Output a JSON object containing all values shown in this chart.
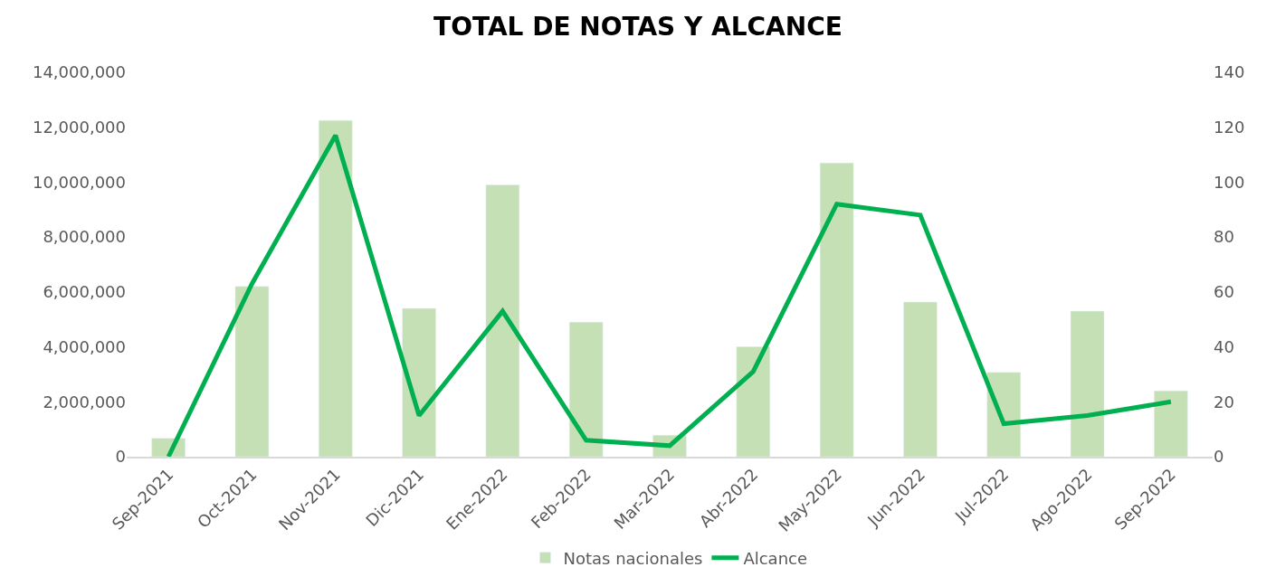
{
  "chart_data": {
    "type": "bar",
    "title": "TOTAL DE NOTAS Y ALCANCE",
    "categories": [
      "Sep-2021",
      "Oct-2021",
      "Nov-2021",
      "Dic-2021",
      "Ene-2022",
      "Feb-2022",
      "Mar-2022",
      "Abr-2022",
      "May-2022",
      "Jun-2022",
      "Jul-2022",
      "Ago-2022",
      "Sep-2022"
    ],
    "series": [
      {
        "name": "Notas nacionales",
        "color": "#c5e0b4",
        "values": [
          670000,
          6200000,
          12250000,
          5400000,
          9900000,
          4900000,
          780000,
          4000000,
          10700000,
          5630000,
          3070000,
          5300000,
          2400000
        ]
      },
      {
        "name": "Alcance",
        "type": "line",
        "axis": "y2",
        "color": "#00b050",
        "values": [
          0,
          63,
          117,
          15,
          53,
          6,
          4,
          31,
          92,
          88,
          12,
          15,
          20
        ]
      }
    ],
    "ylim": [
      0,
      14000000
    ],
    "yticks": [
      {
        "value": 0,
        "label": "0"
      },
      {
        "value": 2000000,
        "label": "2,000,000"
      },
      {
        "value": 4000000,
        "label": "4,000,000"
      },
      {
        "value": 6000000,
        "label": "6,000,000"
      },
      {
        "value": 8000000,
        "label": "8,000,000"
      },
      {
        "value": 10000000,
        "label": "10,000,000"
      },
      {
        "value": 12000000,
        "label": "12,000,000"
      },
      {
        "value": 14000000,
        "label": "14,000,000"
      }
    ],
    "y2lim": [
      0,
      140
    ],
    "y2ticks": [
      0,
      20,
      40,
      60,
      80,
      100,
      120,
      140
    ],
    "legend": "bottom",
    "marker": "none",
    "line_style": "solid"
  }
}
